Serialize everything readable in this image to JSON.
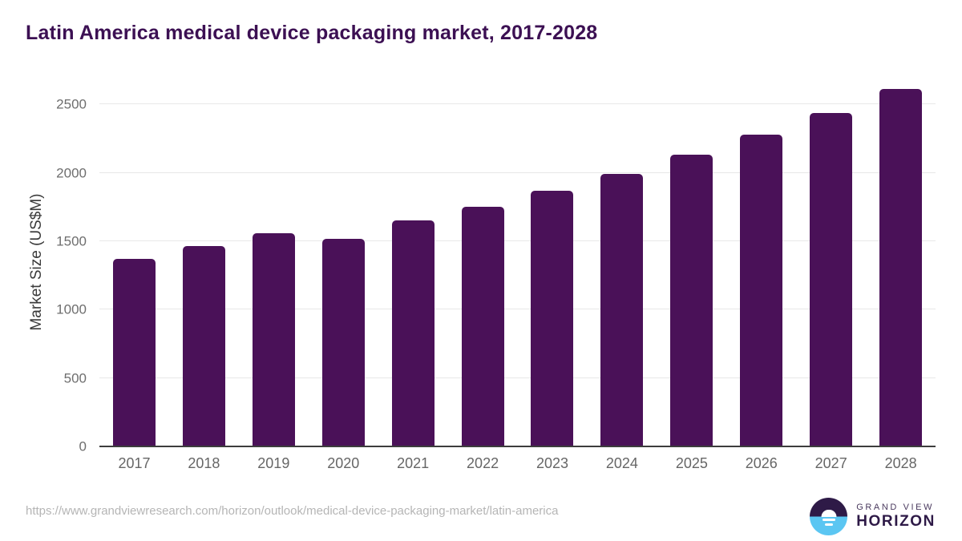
{
  "title": "Latin America medical device packaging market, 2017-2028",
  "chart_data": {
    "type": "bar",
    "title": "Latin America medical device packaging market, 2017-2028",
    "categories": [
      "2017",
      "2018",
      "2019",
      "2020",
      "2021",
      "2022",
      "2023",
      "2024",
      "2025",
      "2026",
      "2027",
      "2028"
    ],
    "values": [
      1370,
      1465,
      1560,
      1515,
      1650,
      1750,
      1870,
      1990,
      2130,
      2280,
      2435,
      2615
    ],
    "xlabel": "",
    "ylabel": "Market Size (US$M)",
    "ylim": [
      0,
      2700
    ],
    "yticks": [
      0,
      500,
      1000,
      1500,
      2000,
      2500
    ],
    "grid": "horizontal",
    "legend": "none",
    "bar_color": "#4a1158"
  },
  "footer": {
    "source_url": "https://www.grandviewresearch.com/horizon/outlook/medical-device-packaging-market/latin-america",
    "logo_line1": "GRAND VIEW",
    "logo_line2": "HORIZON"
  },
  "colors": {
    "title_text": "#3c1053",
    "bar": "#4a1158",
    "axis_line": "#3d3d3d",
    "gridline": "#e8e8e8",
    "y_tick_text": "#6e6e6e",
    "x_tick_text": "#666666",
    "source_text": "#b5b5b5",
    "logo_purple": "#2e1a47",
    "logo_blue": "#5bc6f2"
  }
}
